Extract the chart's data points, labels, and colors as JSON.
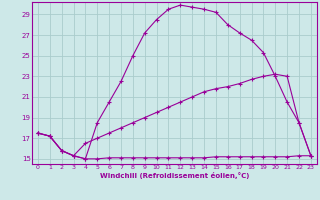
{
  "xlabel": "Windchill (Refroidissement éolien,°C)",
  "bg_color": "#cde8e8",
  "grid_color": "#aacccc",
  "line_color": "#990099",
  "xlim": [
    -0.5,
    23.5
  ],
  "ylim": [
    14.5,
    30.2
  ],
  "yticks": [
    15,
    17,
    19,
    21,
    23,
    25,
    27,
    29
  ],
  "xticks": [
    0,
    1,
    2,
    3,
    4,
    5,
    6,
    7,
    8,
    9,
    10,
    11,
    12,
    13,
    14,
    15,
    16,
    17,
    18,
    19,
    20,
    21,
    22,
    23
  ],
  "curve_flat_x": [
    0,
    1,
    2,
    3,
    4,
    5,
    6,
    7,
    8,
    9,
    10,
    11,
    12,
    13,
    14,
    15,
    16,
    17,
    18,
    19,
    20,
    21,
    22,
    23
  ],
  "curve_flat_y": [
    17.5,
    17.2,
    15.8,
    15.3,
    15.0,
    15.0,
    15.1,
    15.1,
    15.1,
    15.1,
    15.1,
    15.1,
    15.1,
    15.1,
    15.1,
    15.2,
    15.2,
    15.2,
    15.2,
    15.2,
    15.2,
    15.2,
    15.3,
    15.3
  ],
  "curve_bell_x": [
    0,
    1,
    2,
    3,
    4,
    5,
    6,
    7,
    8,
    9,
    10,
    11,
    12,
    13,
    14,
    15,
    16,
    17,
    18,
    19,
    20,
    21,
    22,
    23
  ],
  "curve_bell_y": [
    17.5,
    17.2,
    15.8,
    15.3,
    15.0,
    18.5,
    20.5,
    22.5,
    25.0,
    27.2,
    28.5,
    29.5,
    29.9,
    29.7,
    29.5,
    29.2,
    28.0,
    27.2,
    26.5,
    25.3,
    23.0,
    20.5,
    18.5,
    15.3
  ],
  "curve_rise_x": [
    0,
    1,
    2,
    3,
    4,
    5,
    6,
    7,
    8,
    9,
    10,
    11,
    12,
    13,
    14,
    15,
    16,
    17,
    18,
    19,
    20,
    21,
    22,
    23
  ],
  "curve_rise_y": [
    17.5,
    17.2,
    15.8,
    15.3,
    16.5,
    17.0,
    17.5,
    18.0,
    18.5,
    19.0,
    19.5,
    20.0,
    20.5,
    21.0,
    21.5,
    21.8,
    22.0,
    22.3,
    22.7,
    23.0,
    23.2,
    23.0,
    18.5,
    15.3
  ]
}
